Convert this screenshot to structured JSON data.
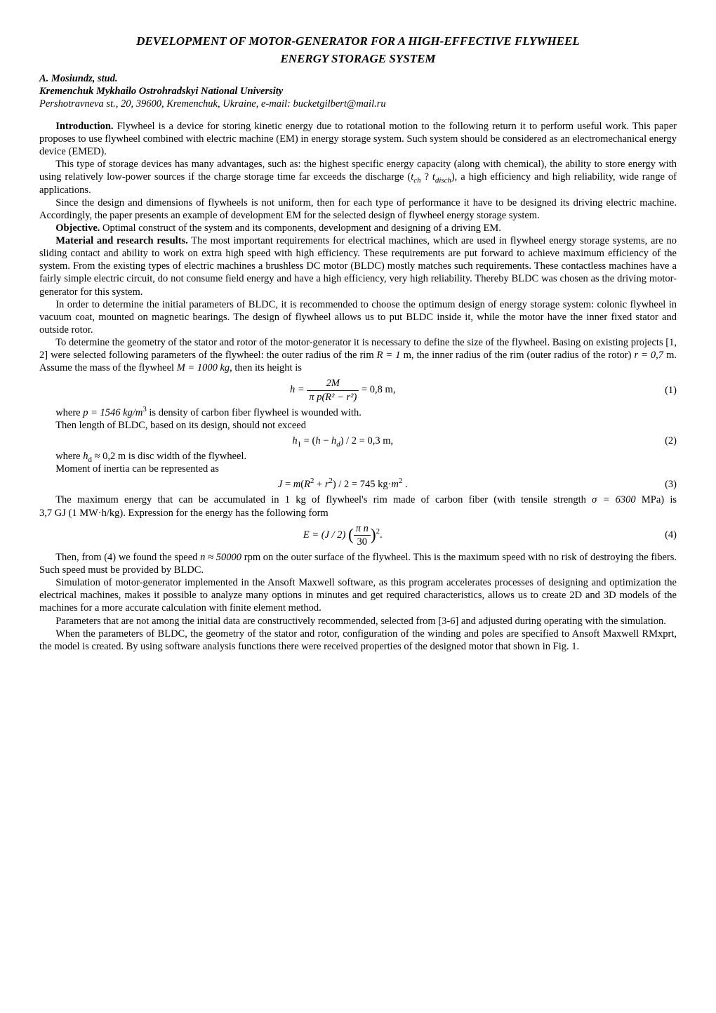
{
  "title_line1": "DEVELOPMENT OF MOTOR-GENERATOR FOR A HIGH-EFFECTIVE FLYWHEEL",
  "title_line2": "ENERGY STORAGE SYSTEM",
  "author": "A. Mosiundz, stud.",
  "affiliation": "Kremenchuk Mykhailo Ostrohradskyi National University",
  "address": "Pershotravneva st., 20, 39600, Kremenchuk, Ukraine, e-mail: bucketgilbert@mail.ru",
  "labels": {
    "introduction": "Introduction.",
    "objective": "Objective.",
    "material": "Material and research results."
  },
  "intro_p1": " Flywheel is a device for storing kinetic energy due to rotational motion to the following return it to perform useful work. This paper proposes to use flywheel combined with electric machine (EM) in energy storage system. Such system should be considered as an electromechanical energy device (EMED).",
  "intro_p2_a": "This type of storage devices has many advantages, such as: the highest specific energy capacity (along with chemical), the ability to store energy with using relatively low-power sources if the charge storage time far exceeds the discharge ",
  "intro_p2_b": ", a high efficiency and high reliability, wide range of applications.",
  "intro_p3": "Since the design and dimensions of flywheels is not uniform, then for each type of performance it have to be designed its driving electric machine. Accordingly, the paper presents an example of development EM for the selected design of flywheel energy storage system.",
  "objective_text": " Optimal construct of the system and its components, development and designing of a driving EM.",
  "mat_p1": " The most important requirements for electrical machines, which are used in flywheel energy storage systems, are no sliding contact and ability to work on extra high speed with high efficiency. These requirements are put forward to achieve maximum efficiency of the system. From the existing types of electric machines a brushless DC motor (BLDC) mostly matches such requirements. These contactless machines have a fairly simple electric circuit, do not consume field energy and have a high efficiency, very high reliability. Thereby BLDC was chosen as the driving motor-generator for this system.",
  "mat_p2": "In order to determine the initial parameters of BLDC, it is recommended to choose the optimum design of energy storage system: colonic flywheel in vacuum coat, mounted on magnetic bearings. The design of flywheel allows us to put BLDC inside it, while the motor have the inner fixed stator and outside rotor.",
  "mat_p3_a": "To determine the geometry of the stator and rotor of the motor-generator it is necessary to define the size of the flywheel. Basing on existing projects [1, 2] were selected following parameters of the flywheel: the outer radius of the rim ",
  "mat_p3_b": " m, the inner radius of the rim (outer radius of the rotor) ",
  "mat_p3_c": " m. Assume the mass of the flywheel ",
  "mat_p3_d": ", then its height is",
  "values": {
    "R": "R = 1",
    "r": "r = 0,7",
    "M": "M = 1000 kg",
    "p": "p = 1546 kg/m",
    "p_exp": "3",
    "hd": "h",
    "hd_sub": "d",
    "hd_val": " ≈ 0,2",
    "n_approx": "n ≈ 50000",
    "sigma": "σ = 6300",
    "gj": "3,7 GJ (1 MW·h/kg"
  },
  "eq1": {
    "lhs": "h = ",
    "top": "2M",
    "bot": "π p(R² − r²)",
    "rhs": " = 0,8  m,",
    "num": "(1)"
  },
  "p_where1_a": "where ",
  "p_where1_b": " is density of carbon fiber flywheel is wounded with.",
  "p_then_len": "Then length of BLDC, based on its design, should not exceed",
  "eq2": {
    "expr": "h₁ = (h − h_d) / 2 = 0,3 m,",
    "num": "(2)"
  },
  "p_where2_a": "where ",
  "p_where2_b": " m is disc width of the flywheel.",
  "p_moment": "Moment of inertia can be represented as",
  "eq3": {
    "expr": "J = m(R² + r²) / 2 = 745 kg·m² .",
    "num": "(3)"
  },
  "p_maxE_a": "The maximum energy that can be accumulated in 1 kg of flywheel's rim made of carbon fiber (with tensile strength ",
  "p_maxE_b": " MPa) is ",
  "p_maxE_c": "). Expression for the energy has the following form",
  "eq4": {
    "lhs": "E = (J / 2)",
    "top": "π n",
    "bot": "30",
    "exp": "2",
    "tail": ".",
    "num": "(4)"
  },
  "p_speed_a": "Then, from (4) we found the speed ",
  "p_speed_b": " rpm on the outer surface of the flywheel. This is the maximum speed with no risk of destroying the fibers. Such speed must be provided by BLDC.",
  "p_sim": "Simulation of motor-generator implemented in the Ansoft Maxwell software, as this program accelerates processes of designing and optimization the electrical machines, makes it possible to analyze many options in minutes and get required characteristics, allows us to create 2D and 3D models of the machines for a more accurate calculation with finite element method.",
  "p_params": "Parameters that are not among the initial data are constructively recommended, selected from [3-6] and adjusted during operating with the simulation.",
  "p_when": "When the parameters of BLDC, the geometry of the stator and rotor, configuration of the winding and poles are specified to Ansoft Maxwell RMxprt, the model is created. By using software analysis functions there were received properties of the designed motor that shown in Fig. 1."
}
